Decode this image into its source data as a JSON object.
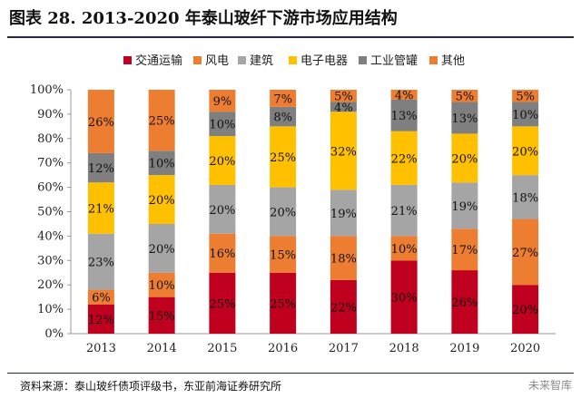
{
  "title": "图表 28. 2013-2020 年泰山玻纤下游市场应用结构",
  "source": "资料来源：泰山玻纤债项评级书，东亚前海证券研究所",
  "watermark": "未来智库",
  "chart_data": {
    "type": "bar",
    "stacked": true,
    "categories": [
      "2013",
      "2014",
      "2015",
      "2016",
      "2017",
      "2018",
      "2019",
      "2020"
    ],
    "ylim": [
      0,
      100
    ],
    "yticks": [
      "0%",
      "10%",
      "20%",
      "30%",
      "40%",
      "50%",
      "60%",
      "70%",
      "80%",
      "90%",
      "100%"
    ],
    "legend_position": "top",
    "series": [
      {
        "name": "交通运输",
        "color": "#c0001f",
        "values": [
          12,
          15,
          25,
          25,
          22,
          30,
          26,
          20
        ]
      },
      {
        "name": "风电",
        "color": "#ed7d31",
        "values": [
          6,
          10,
          16,
          15,
          18,
          10,
          17,
          27
        ]
      },
      {
        "name": "建筑",
        "color": "#a5a5a5",
        "values": [
          23,
          20,
          20,
          20,
          19,
          21,
          19,
          18
        ]
      },
      {
        "name": "电子电器",
        "color": "#ffc000",
        "values": [
          21,
          20,
          20,
          25,
          32,
          22,
          20,
          20
        ]
      },
      {
        "name": "工业管罐",
        "color": "#7f7f7f",
        "values": [
          12,
          10,
          10,
          8,
          4,
          13,
          13,
          10
        ]
      },
      {
        "name": "其他",
        "color": "#ed7d31",
        "values": [
          26,
          25,
          9,
          7,
          5,
          4,
          5,
          5
        ]
      }
    ]
  }
}
